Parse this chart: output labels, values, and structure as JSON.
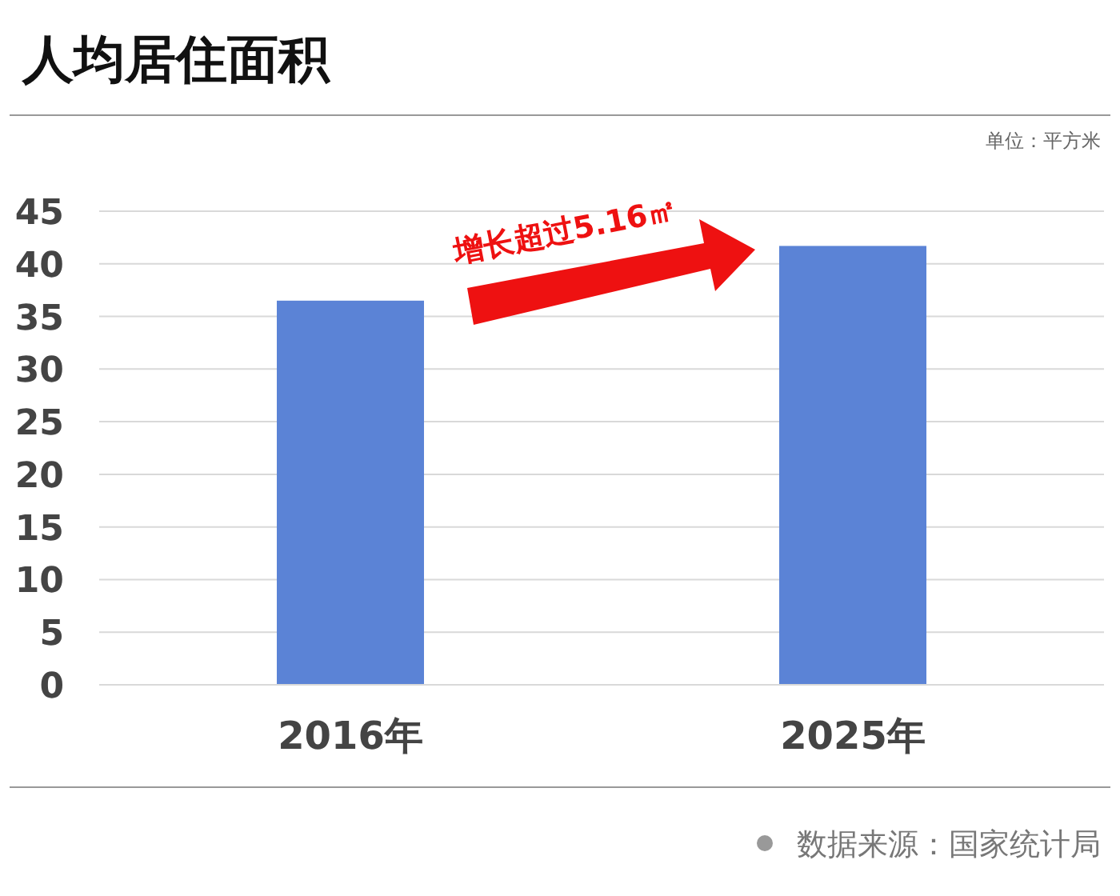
{
  "chart_data": {
    "type": "bar",
    "title": "人均居住面积",
    "categories": [
      "2016年",
      "2025年"
    ],
    "values": [
      36.5,
      41.7
    ],
    "color": "#5b83d6",
    "ylim": [
      0,
      45
    ],
    "yticks": [
      0,
      5,
      10,
      15,
      20,
      25,
      30,
      35,
      40,
      45
    ],
    "grid": "y",
    "annotations": [
      "单位：平方米",
      "增长超过5.16㎡",
      "数据来源：国家统计局"
    ]
  }
}
